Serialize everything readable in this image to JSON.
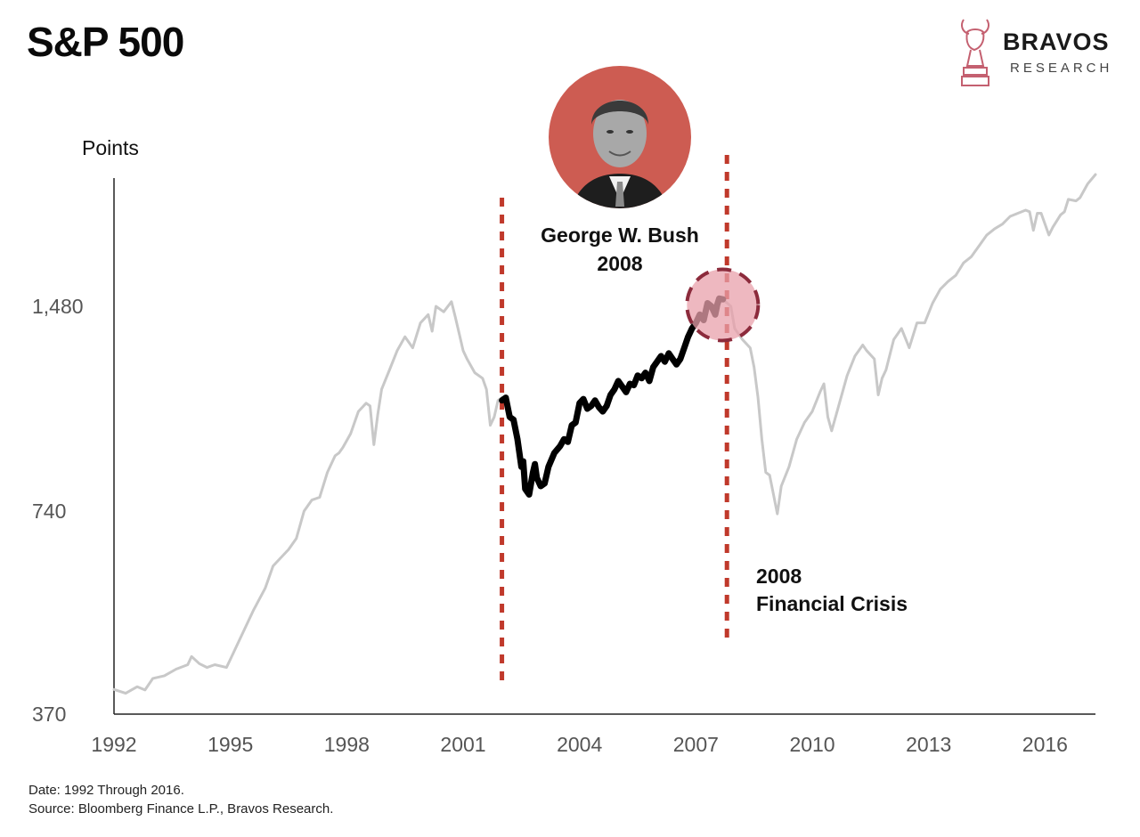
{
  "header": {
    "title": "S&P 500",
    "brand_name": "BRAVOS",
    "brand_sub": "RESEARCH",
    "logo_icon": "bull-horse-logo-icon"
  },
  "annotations": {
    "president_name": "George W. Bush",
    "president_year": "2008",
    "event_year": "2008",
    "event_label": "Financial Crisis",
    "portrait_icon": "president-portrait-icon"
  },
  "footer": {
    "date_line": "Date: 1992 Through 2016.",
    "source_line": "Source: Bloomberg Finance L.P., Bravos Research."
  },
  "colors": {
    "background": "#ffffff",
    "history_line": "#c8c8c8",
    "highlight_line": "#000000",
    "accent_red": "#c0392b",
    "circle_fill": "#e8a0ab",
    "circle_stroke": "#8c2b3c"
  },
  "chart_data": {
    "type": "line",
    "ylabel": "Points",
    "xlabel": "",
    "yticks": [
      370,
      740,
      1480
    ],
    "xticks": [
      1992,
      1995,
      1998,
      2001,
      2004,
      2007,
      2010,
      2013,
      2016
    ],
    "xlim": [
      1992,
      2017.3
    ],
    "ylim": [
      370,
      2300
    ],
    "scale": "piecewise by labeled ticks",
    "series": [
      {
        "role": "full-history",
        "color": "#c8c8c8",
        "points": [
          [
            1992.0,
            415
          ],
          [
            1992.3,
            408
          ],
          [
            1992.6,
            420
          ],
          [
            1992.8,
            414
          ],
          [
            1993.0,
            435
          ],
          [
            1993.3,
            440
          ],
          [
            1993.6,
            452
          ],
          [
            1993.9,
            460
          ],
          [
            1994.0,
            475
          ],
          [
            1994.2,
            462
          ],
          [
            1994.4,
            455
          ],
          [
            1994.6,
            460
          ],
          [
            1994.9,
            455
          ],
          [
            1995.0,
            470
          ],
          [
            1995.2,
            500
          ],
          [
            1995.4,
            530
          ],
          [
            1995.6,
            560
          ],
          [
            1995.9,
            600
          ],
          [
            1996.1,
            640
          ],
          [
            1996.3,
            655
          ],
          [
            1996.5,
            670
          ],
          [
            1996.7,
            690
          ],
          [
            1996.9,
            740
          ],
          [
            1997.1,
            780
          ],
          [
            1997.3,
            790
          ],
          [
            1997.5,
            880
          ],
          [
            1997.7,
            940
          ],
          [
            1997.8,
            950
          ],
          [
            1997.9,
            970
          ],
          [
            1998.1,
            1020
          ],
          [
            1998.3,
            1100
          ],
          [
            1998.5,
            1130
          ],
          [
            1998.6,
            1120
          ],
          [
            1998.7,
            980
          ],
          [
            1998.8,
            1090
          ],
          [
            1998.9,
            1180
          ],
          [
            1999.1,
            1250
          ],
          [
            1999.3,
            1320
          ],
          [
            1999.5,
            1370
          ],
          [
            1999.7,
            1330
          ],
          [
            1999.9,
            1420
          ],
          [
            2000.1,
            1450
          ],
          [
            2000.2,
            1390
          ],
          [
            2000.3,
            1480
          ],
          [
            2000.5,
            1460
          ],
          [
            2000.7,
            1510
          ],
          [
            2000.8,
            1440
          ],
          [
            2000.9,
            1380
          ],
          [
            2001.0,
            1320
          ],
          [
            2001.1,
            1290
          ],
          [
            2001.3,
            1240
          ],
          [
            2001.5,
            1220
          ],
          [
            2001.6,
            1180
          ],
          [
            2001.7,
            1050
          ],
          [
            2001.8,
            1080
          ],
          [
            2001.9,
            1140
          ],
          [
            2002.0,
            1150
          ]
        ]
      },
      {
        "role": "full-history",
        "color": "#c8c8c8",
        "points": [
          [
            2007.7,
            1525
          ],
          [
            2007.9,
            1480
          ],
          [
            2008.0,
            1400
          ],
          [
            2008.2,
            1360
          ],
          [
            2008.4,
            1330
          ],
          [
            2008.5,
            1260
          ],
          [
            2008.6,
            1150
          ],
          [
            2008.7,
            1000
          ],
          [
            2008.8,
            880
          ],
          [
            2008.9,
            870
          ],
          [
            2009.0,
            800
          ],
          [
            2009.1,
            735
          ],
          [
            2009.2,
            830
          ],
          [
            2009.4,
            900
          ],
          [
            2009.6,
            1000
          ],
          [
            2009.8,
            1060
          ],
          [
            2010.0,
            1100
          ],
          [
            2010.2,
            1170
          ],
          [
            2010.3,
            1200
          ],
          [
            2010.4,
            1080
          ],
          [
            2010.5,
            1030
          ],
          [
            2010.7,
            1130
          ],
          [
            2010.9,
            1230
          ],
          [
            2011.1,
            1300
          ],
          [
            2011.3,
            1340
          ],
          [
            2011.4,
            1320
          ],
          [
            2011.6,
            1290
          ],
          [
            2011.7,
            1160
          ],
          [
            2011.8,
            1220
          ],
          [
            2011.9,
            1250
          ],
          [
            2012.1,
            1360
          ],
          [
            2012.3,
            1400
          ],
          [
            2012.5,
            1330
          ],
          [
            2012.7,
            1420
          ],
          [
            2012.9,
            1420
          ],
          [
            2013.1,
            1500
          ],
          [
            2013.3,
            1590
          ],
          [
            2013.5,
            1640
          ],
          [
            2013.7,
            1680
          ],
          [
            2013.9,
            1760
          ],
          [
            2014.1,
            1800
          ],
          [
            2014.3,
            1870
          ],
          [
            2014.5,
            1940
          ],
          [
            2014.7,
            1980
          ],
          [
            2014.9,
            2010
          ],
          [
            2015.1,
            2060
          ],
          [
            2015.3,
            2080
          ],
          [
            2015.5,
            2100
          ],
          [
            2015.6,
            2090
          ],
          [
            2015.7,
            1970
          ],
          [
            2015.8,
            2080
          ],
          [
            2015.9,
            2080
          ],
          [
            2016.1,
            1940
          ],
          [
            2016.2,
            1990
          ],
          [
            2016.4,
            2070
          ],
          [
            2016.5,
            2090
          ],
          [
            2016.6,
            2170
          ],
          [
            2016.8,
            2160
          ],
          [
            2016.9,
            2180
          ],
          [
            2017.1,
            2270
          ],
          [
            2017.3,
            2330
          ]
        ]
      },
      {
        "role": "bush-era-highlight",
        "color": "#000000",
        "points": [
          [
            2002.0,
            1140
          ],
          [
            2002.1,
            1150
          ],
          [
            2002.2,
            1080
          ],
          [
            2002.3,
            1070
          ],
          [
            2002.4,
            1000
          ],
          [
            2002.5,
            900
          ],
          [
            2002.55,
            920
          ],
          [
            2002.6,
            820
          ],
          [
            2002.7,
            800
          ],
          [
            2002.8,
            880
          ],
          [
            2002.85,
            910
          ],
          [
            2002.9,
            860
          ],
          [
            2003.0,
            830
          ],
          [
            2003.1,
            840
          ],
          [
            2003.2,
            900
          ],
          [
            2003.35,
            950
          ],
          [
            2003.5,
            975
          ],
          [
            2003.6,
            1000
          ],
          [
            2003.7,
            990
          ],
          [
            2003.8,
            1050
          ],
          [
            2003.9,
            1060
          ],
          [
            2004.0,
            1130
          ],
          [
            2004.1,
            1145
          ],
          [
            2004.2,
            1110
          ],
          [
            2004.3,
            1120
          ],
          [
            2004.4,
            1140
          ],
          [
            2004.5,
            1115
          ],
          [
            2004.6,
            1100
          ],
          [
            2004.7,
            1120
          ],
          [
            2004.8,
            1160
          ],
          [
            2004.9,
            1180
          ],
          [
            2005.0,
            1210
          ],
          [
            2005.1,
            1190
          ],
          [
            2005.2,
            1170
          ],
          [
            2005.3,
            1200
          ],
          [
            2005.4,
            1195
          ],
          [
            2005.5,
            1230
          ],
          [
            2005.6,
            1220
          ],
          [
            2005.7,
            1240
          ],
          [
            2005.8,
            1210
          ],
          [
            2005.9,
            1260
          ],
          [
            2006.0,
            1280
          ],
          [
            2006.1,
            1300
          ],
          [
            2006.2,
            1280
          ],
          [
            2006.3,
            1310
          ],
          [
            2006.4,
            1290
          ],
          [
            2006.5,
            1270
          ],
          [
            2006.6,
            1290
          ],
          [
            2006.7,
            1330
          ],
          [
            2006.8,
            1370
          ],
          [
            2006.9,
            1400
          ],
          [
            2007.0,
            1420
          ],
          [
            2007.1,
            1450
          ],
          [
            2007.2,
            1430
          ],
          [
            2007.3,
            1500
          ],
          [
            2007.4,
            1480
          ],
          [
            2007.5,
            1450
          ],
          [
            2007.55,
            1490
          ],
          [
            2007.6,
            1530
          ],
          [
            2007.7,
            1525
          ]
        ]
      }
    ],
    "vertical_markers": [
      {
        "x": 2002.0,
        "style": "dashed",
        "color": "#c0392b"
      },
      {
        "x": 2007.8,
        "style": "dashed",
        "color": "#c0392b"
      }
    ],
    "highlight_circle": {
      "x": 2007.55,
      "y": 1500
    }
  }
}
